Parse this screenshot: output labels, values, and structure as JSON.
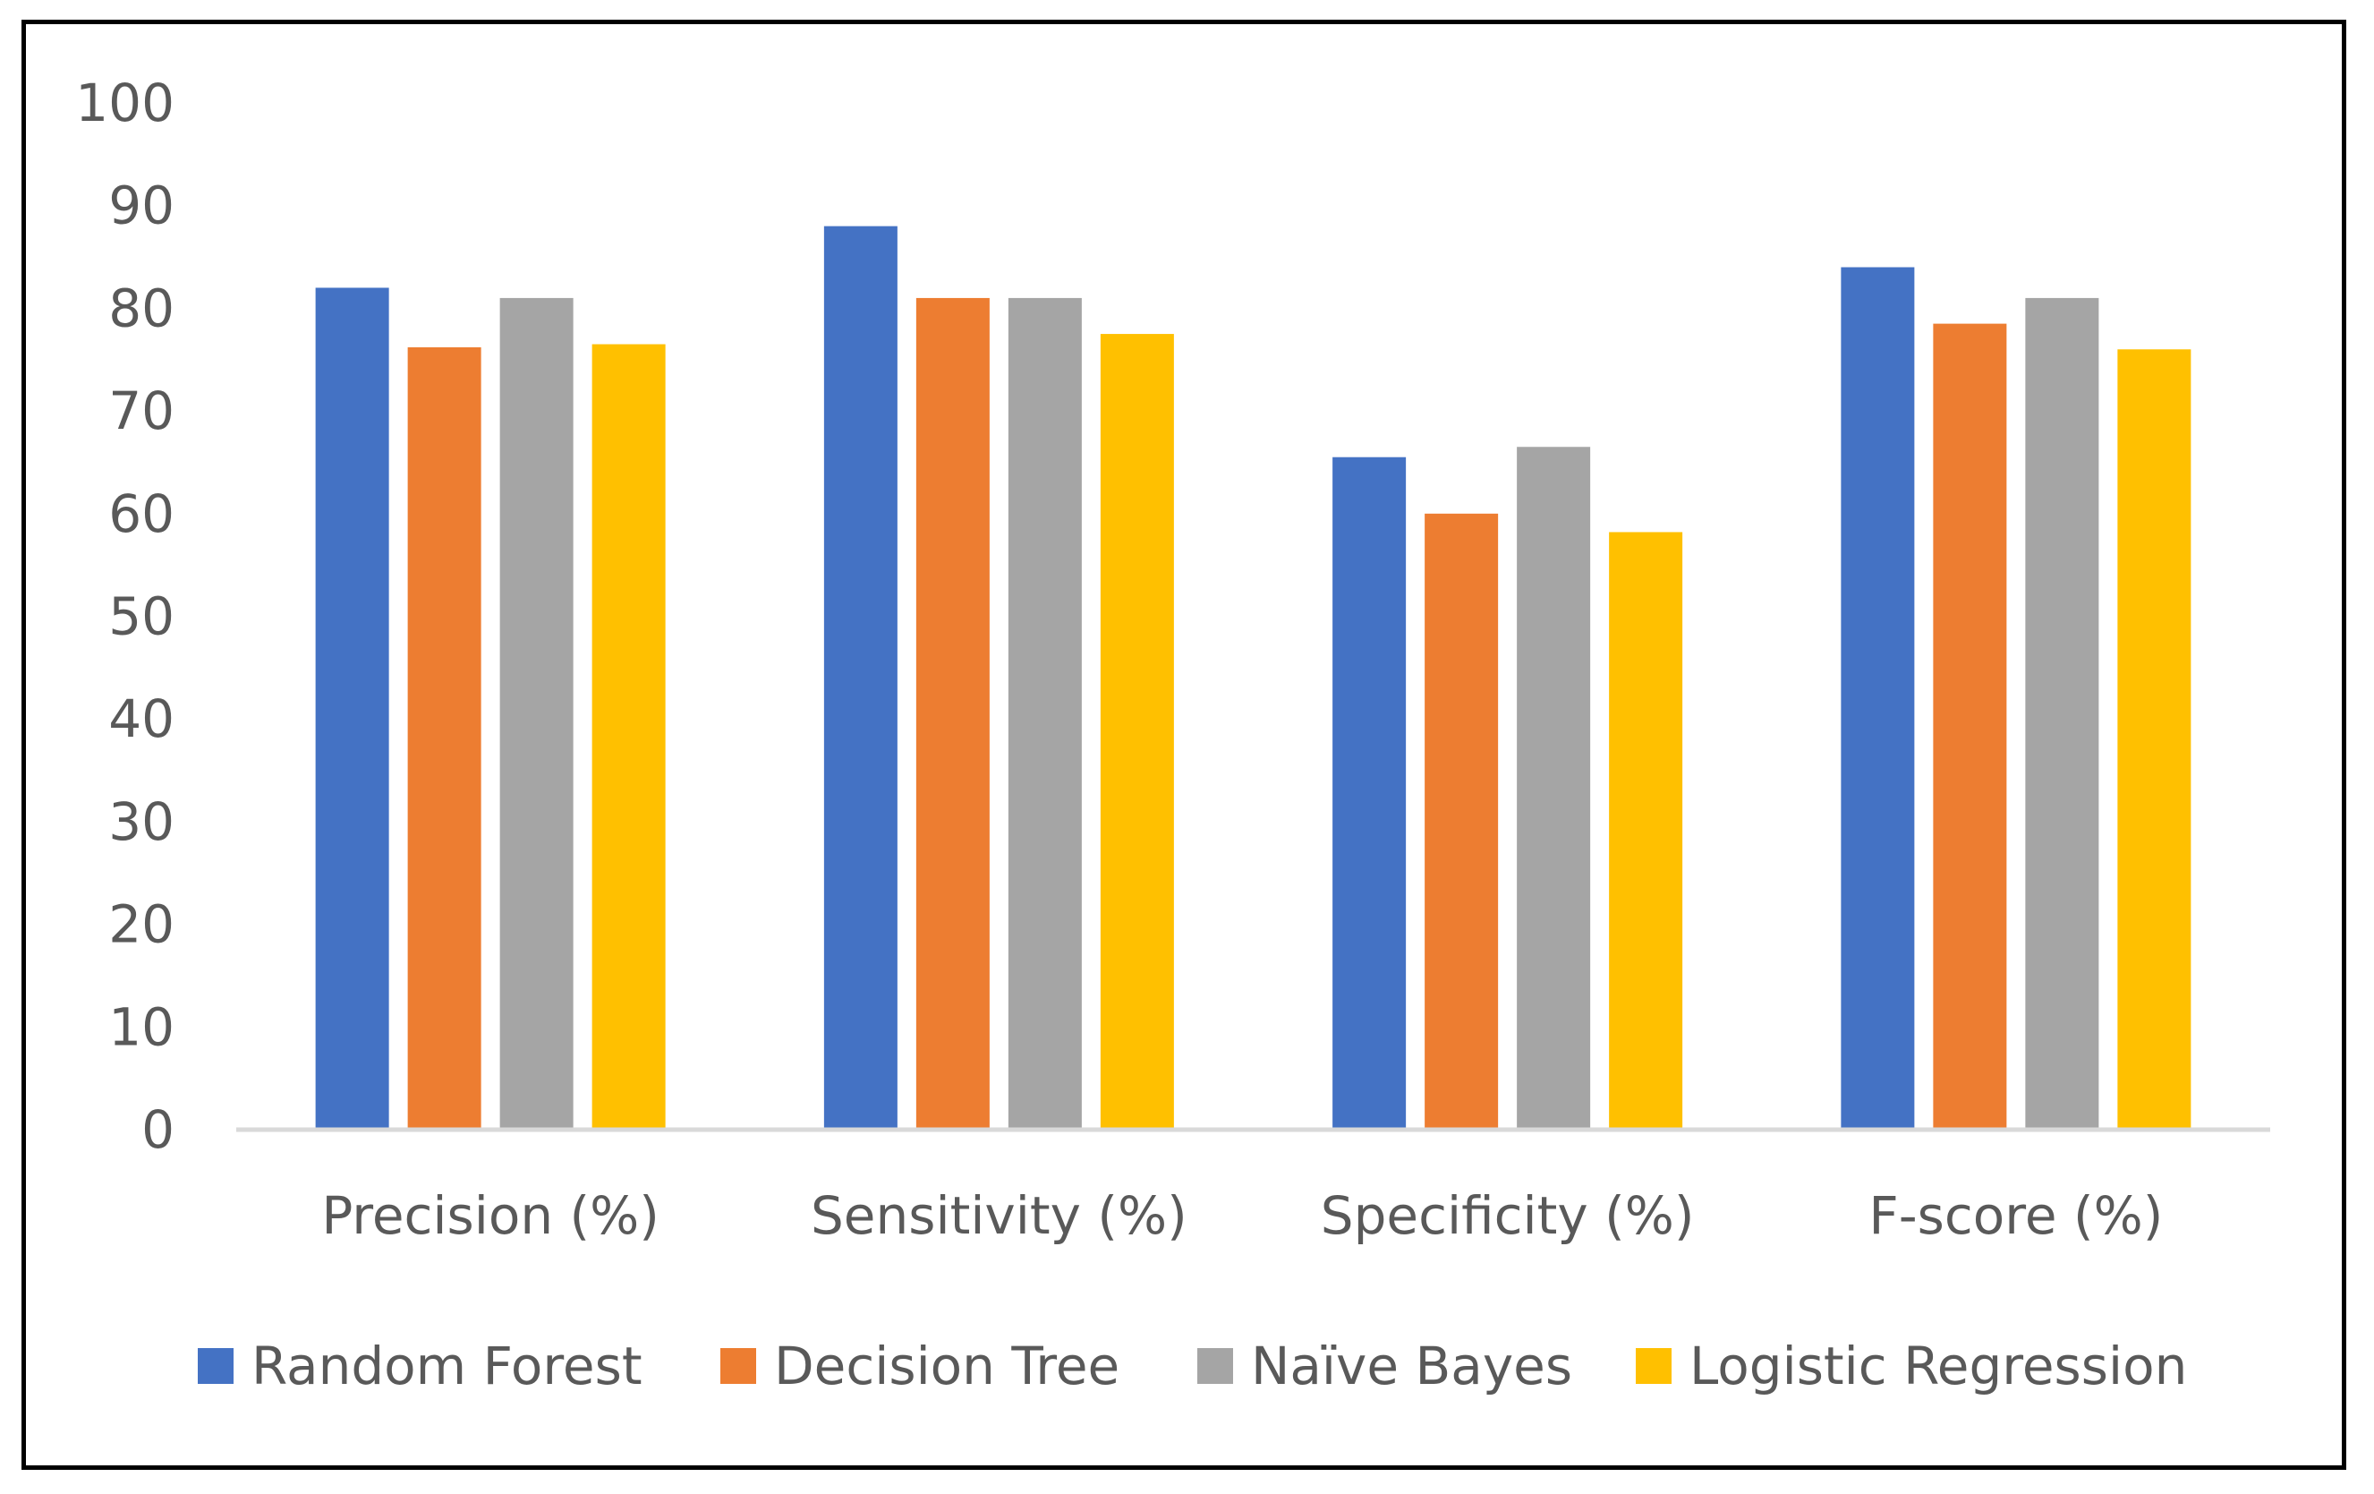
{
  "chart_data": {
    "type": "bar",
    "title": "",
    "xlabel": "",
    "ylabel": "",
    "categories": [
      "Precision (%)",
      "Sensitivity (%)",
      "Specificity (%)",
      "F-score (%)"
    ],
    "series": [
      {
        "name": "Random Forest",
        "color": "#4472C4",
        "values": [
          82,
          88,
          65.5,
          84
        ]
      },
      {
        "name": "Decision Tree",
        "color": "#ED7D31",
        "values": [
          76.2,
          81,
          60,
          78.5
        ]
      },
      {
        "name": "Naïve Bayes",
        "color": "#A5A5A5",
        "values": [
          81,
          81,
          66.5,
          81
        ]
      },
      {
        "name": "Logistic Regression",
        "color": "#FFC000",
        "values": [
          76.5,
          77.5,
          58.2,
          76
        ]
      }
    ],
    "ylim": [
      0,
      100
    ],
    "yticks": [
      0,
      10,
      20,
      30,
      40,
      50,
      60,
      70,
      80,
      90,
      100
    ],
    "grid": false,
    "legend": "bottom"
  }
}
